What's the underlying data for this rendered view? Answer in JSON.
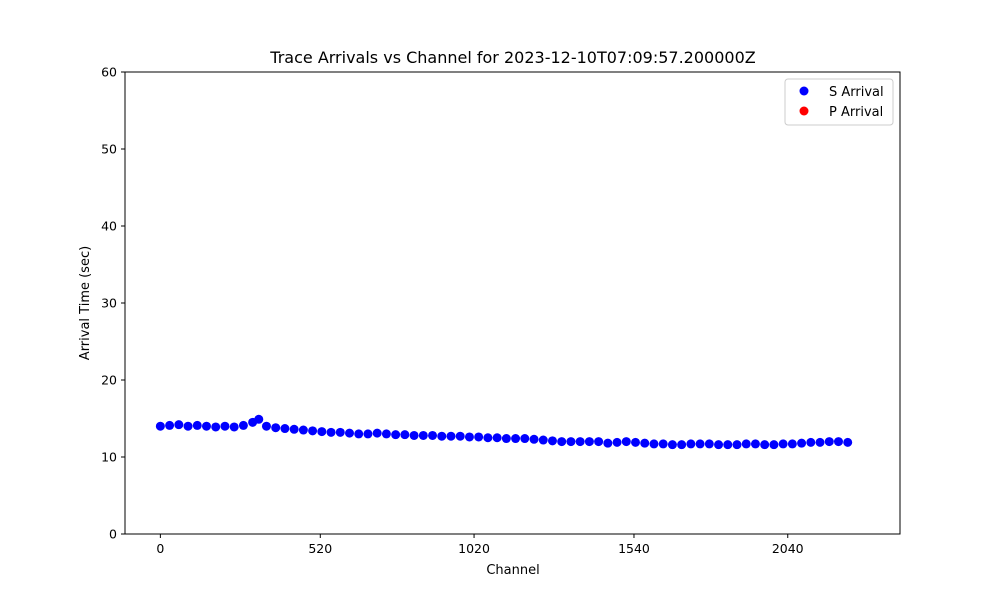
{
  "chart_data": {
    "type": "scatter",
    "title": "Trace Arrivals vs Channel for 2023-12-10T07:09:57.200000Z",
    "xlabel": "Channel",
    "ylabel": "Arrival Time (sec)",
    "xlim": [
      -115,
      2405
    ],
    "ylim": [
      0,
      60
    ],
    "xticks": [
      0,
      520,
      1020,
      1540,
      2040
    ],
    "yticks": [
      0,
      10,
      20,
      30,
      40,
      50,
      60
    ],
    "grid": false,
    "legend_position": "top-right",
    "series": [
      {
        "name": "S Arrival",
        "color": "#0000ff",
        "x": [
          0,
          30,
          60,
          90,
          120,
          150,
          180,
          210,
          240,
          270,
          300,
          320,
          345,
          375,
          405,
          435,
          465,
          495,
          525,
          555,
          585,
          615,
          645,
          675,
          705,
          735,
          765,
          795,
          825,
          855,
          885,
          915,
          945,
          975,
          1005,
          1035,
          1065,
          1095,
          1125,
          1155,
          1185,
          1215,
          1245,
          1275,
          1305,
          1335,
          1365,
          1395,
          1425,
          1455,
          1485,
          1515,
          1545,
          1575,
          1605,
          1635,
          1665,
          1695,
          1725,
          1755,
          1785,
          1815,
          1845,
          1875,
          1905,
          1935,
          1965,
          1995,
          2025,
          2055,
          2085,
          2115,
          2145,
          2175,
          2205,
          2235
        ],
        "y": [
          14.0,
          14.1,
          14.2,
          14.0,
          14.1,
          14.0,
          13.9,
          14.0,
          13.9,
          14.1,
          14.5,
          14.9,
          14.0,
          13.8,
          13.7,
          13.6,
          13.5,
          13.4,
          13.3,
          13.2,
          13.2,
          13.1,
          13.0,
          13.0,
          13.1,
          13.0,
          12.9,
          12.9,
          12.8,
          12.8,
          12.8,
          12.7,
          12.7,
          12.7,
          12.6,
          12.6,
          12.5,
          12.5,
          12.4,
          12.4,
          12.4,
          12.3,
          12.2,
          12.1,
          12.0,
          12.0,
          12.0,
          12.0,
          12.0,
          11.8,
          11.9,
          12.0,
          11.9,
          11.8,
          11.7,
          11.7,
          11.6,
          11.6,
          11.7,
          11.7,
          11.7,
          11.6,
          11.6,
          11.6,
          11.7,
          11.7,
          11.6,
          11.6,
          11.7,
          11.7,
          11.8,
          11.9,
          11.9,
          12.0,
          12.0,
          11.9
        ]
      },
      {
        "name": "P Arrival",
        "color": "#ff0000",
        "x": [],
        "y": []
      }
    ]
  }
}
